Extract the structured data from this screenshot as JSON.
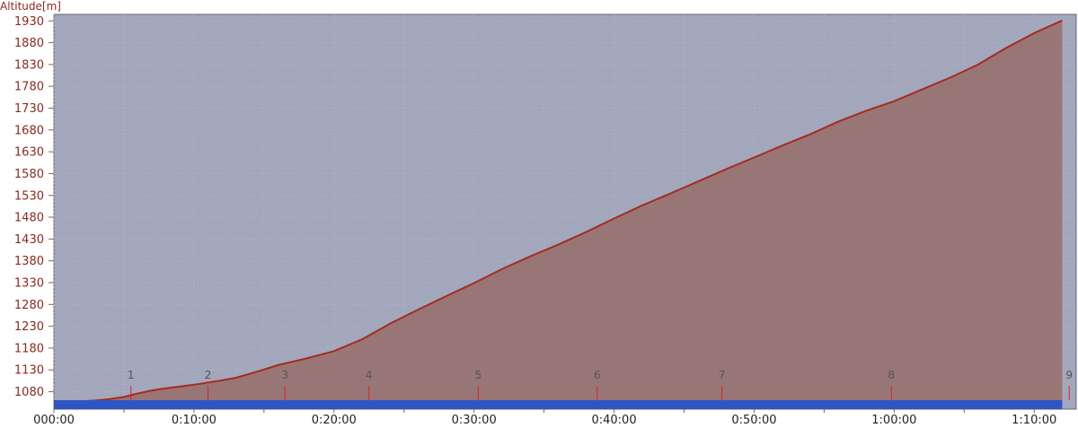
{
  "chart_data": {
    "type": "area",
    "ylabel": "Altitude[m]",
    "xlabel": "",
    "ylim": [
      1040,
      1945
    ],
    "xlim_min": [
      0,
      73
    ],
    "y_ticks": [
      1080,
      1130,
      1180,
      1230,
      1280,
      1330,
      1380,
      1430,
      1480,
      1530,
      1580,
      1630,
      1680,
      1730,
      1780,
      1830,
      1880,
      1930
    ],
    "x_ticks": [
      {
        "t": 0,
        "label": "000:00"
      },
      {
        "t": 10,
        "label": "0:10:00"
      },
      {
        "t": 20,
        "label": "0:20:00"
      },
      {
        "t": 30,
        "label": "0:30:00"
      },
      {
        "t": 40,
        "label": "0:40:00"
      },
      {
        "t": 50,
        "label": "0:50:00"
      },
      {
        "t": 60,
        "label": "1:00:00"
      },
      {
        "t": 70,
        "label": "1:10:00"
      }
    ],
    "x_minor_step": 5,
    "grid": true,
    "series": [
      {
        "x": [
          1.0,
          2.0,
          3.0,
          4.0,
          5.0,
          6.0,
          7.0,
          8.0,
          9.0,
          10.0,
          11.0,
          12.0,
          13.0,
          14.0,
          15.0,
          16.0,
          18.0,
          20.0,
          22.0,
          24.0,
          26.0,
          28.0,
          30.0,
          32.0,
          34.0,
          36.0,
          38.0,
          40.0,
          42.0,
          44.0,
          46.0,
          48.0,
          50.0,
          52.0,
          54.0,
          56.0,
          58.0,
          60.0,
          62.0,
          64.0,
          66.0,
          68.0,
          70.0,
          72.0
        ],
        "y": [
          1045,
          1058,
          1060,
          1063,
          1068,
          1076,
          1083,
          1088,
          1092,
          1096,
          1101,
          1106,
          1112,
          1121,
          1131,
          1141,
          1156,
          1173,
          1200,
          1236,
          1268,
          1299,
          1329,
          1361,
          1390,
          1417,
          1446,
          1477,
          1507,
          1534,
          1562,
          1590,
          1617,
          1644,
          1670,
          1699,
          1724,
          1746,
          1773,
          1800,
          1830,
          1868,
          1902,
          1931
        ]
      }
    ],
    "waypoints": [
      {
        "label": "1",
        "t": 5.5
      },
      {
        "label": "2",
        "t": 11.0
      },
      {
        "label": "3",
        "t": 16.5
      },
      {
        "label": "4",
        "t": 22.5
      },
      {
        "label": "5",
        "t": 30.3
      },
      {
        "label": "6",
        "t": 38.8
      },
      {
        "label": "7",
        "t": 47.7
      },
      {
        "label": "8",
        "t": 59.8
      },
      {
        "label": "9",
        "t": 72.5
      }
    ],
    "colors": {
      "background": "#a3a7bb",
      "fill": "#987676",
      "line": "#a92a1e",
      "axis_label": "#8b2a1e",
      "baseline_bar": "#2e55c4",
      "waypoint_marker": "#e02020"
    }
  }
}
